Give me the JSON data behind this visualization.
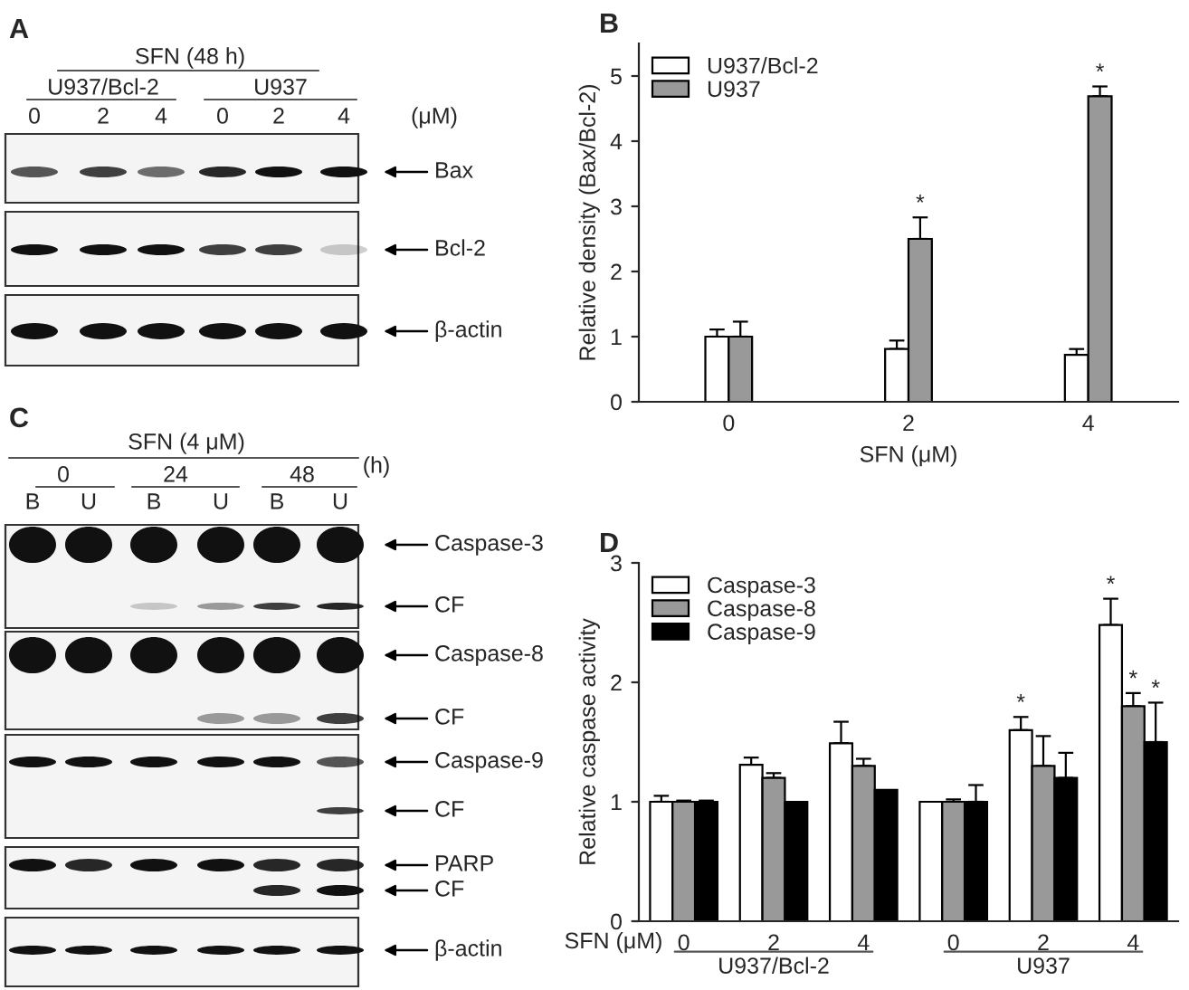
{
  "chart_data": [
    {
      "type": "other",
      "title": "A",
      "annotations": [
        "SFN (48 h)",
        "U937/Bcl-2",
        "U937",
        "0",
        "2",
        "4",
        "0",
        "2",
        "4",
        "(μM)",
        "Bax",
        "Bcl-2",
        "β-actin"
      ]
    },
    {
      "type": "bar",
      "title": "B",
      "categories": [
        "0",
        "2",
        "4"
      ],
      "xlabel": "SFN (μM)",
      "ylabel": "Relative density (Bax/Bcl-2)",
      "ylim": [
        0,
        5.5
      ],
      "yticks": [
        0,
        1,
        2,
        3,
        4,
        5
      ],
      "legend": "top left",
      "series": [
        {
          "name": "U937/Bcl-2",
          "color": "#ffffff",
          "values": [
            1.0,
            0.81,
            0.72
          ],
          "errors": [
            [
              1.0,
              1.11
            ],
            [
              0.81,
              0.94
            ],
            [
              0.72,
              0.81
            ]
          ]
        },
        {
          "name": "U937",
          "color": "#999999",
          "values": [
            1.0,
            2.5,
            4.69
          ],
          "errors": [
            [
              1.0,
              1.23
            ],
            [
              2.5,
              2.83
            ],
            [
              4.69,
              4.84
            ]
          ],
          "value_labels": [
            null,
            "*",
            "*"
          ]
        }
      ]
    },
    {
      "type": "other",
      "title": "C",
      "annotations": [
        "SFN (4 μM)",
        "0",
        "24",
        "48",
        "(h)",
        "B",
        "U",
        "B",
        "U",
        "B",
        "U",
        "Caspase-3",
        "CF",
        "Caspase-8",
        "CF",
        "Caspase-9",
        "CF",
        "PARP",
        "CF",
        "β-actin"
      ]
    },
    {
      "type": "bar",
      "title": "D",
      "categories": [
        "0",
        "2",
        "4",
        "0",
        "2",
        "4"
      ],
      "xlabel": "SFN (μM)",
      "ylabel": "Relative caspase activity",
      "ylim": [
        0,
        3
      ],
      "yticks": [
        0,
        1,
        2,
        3
      ],
      "legend": "top left",
      "annotations": [
        "U937/Bcl-2",
        "U937"
      ],
      "series": [
        {
          "name": "Caspase-3",
          "color": "#ffffff",
          "values": [
            1.0,
            1.31,
            1.49,
            1.0,
            1.6,
            2.48
          ],
          "errors": [
            [
              1.0,
              1.05
            ],
            [
              1.31,
              1.37
            ],
            [
              1.49,
              1.67
            ],
            null,
            [
              1.6,
              1.71
            ],
            [
              2.48,
              2.7
            ]
          ],
          "value_labels": [
            null,
            null,
            null,
            null,
            "*",
            "*"
          ]
        },
        {
          "name": "Caspase-8",
          "color": "#999999",
          "values": [
            1.0,
            1.2,
            1.3,
            1.0,
            1.3,
            1.8
          ],
          "errors": [
            [
              1.0,
              1.01
            ],
            [
              1.2,
              1.24
            ],
            [
              1.3,
              1.36
            ],
            [
              1.0,
              1.02
            ],
            [
              1.3,
              1.55
            ],
            [
              1.8,
              1.91
            ]
          ],
          "value_labels": [
            null,
            null,
            null,
            null,
            null,
            "*"
          ]
        },
        {
          "name": "Caspase-9",
          "color": "#000000",
          "values": [
            1.0,
            1.0,
            1.1,
            1.0,
            1.2,
            1.5
          ],
          "errors": [
            [
              1.0,
              1.01
            ],
            null,
            null,
            [
              1.0,
              1.14
            ],
            [
              1.2,
              1.41
            ],
            [
              1.5,
              1.83
            ]
          ],
          "value_labels": [
            null,
            null,
            null,
            null,
            null,
            "*"
          ]
        }
      ]
    }
  ]
}
